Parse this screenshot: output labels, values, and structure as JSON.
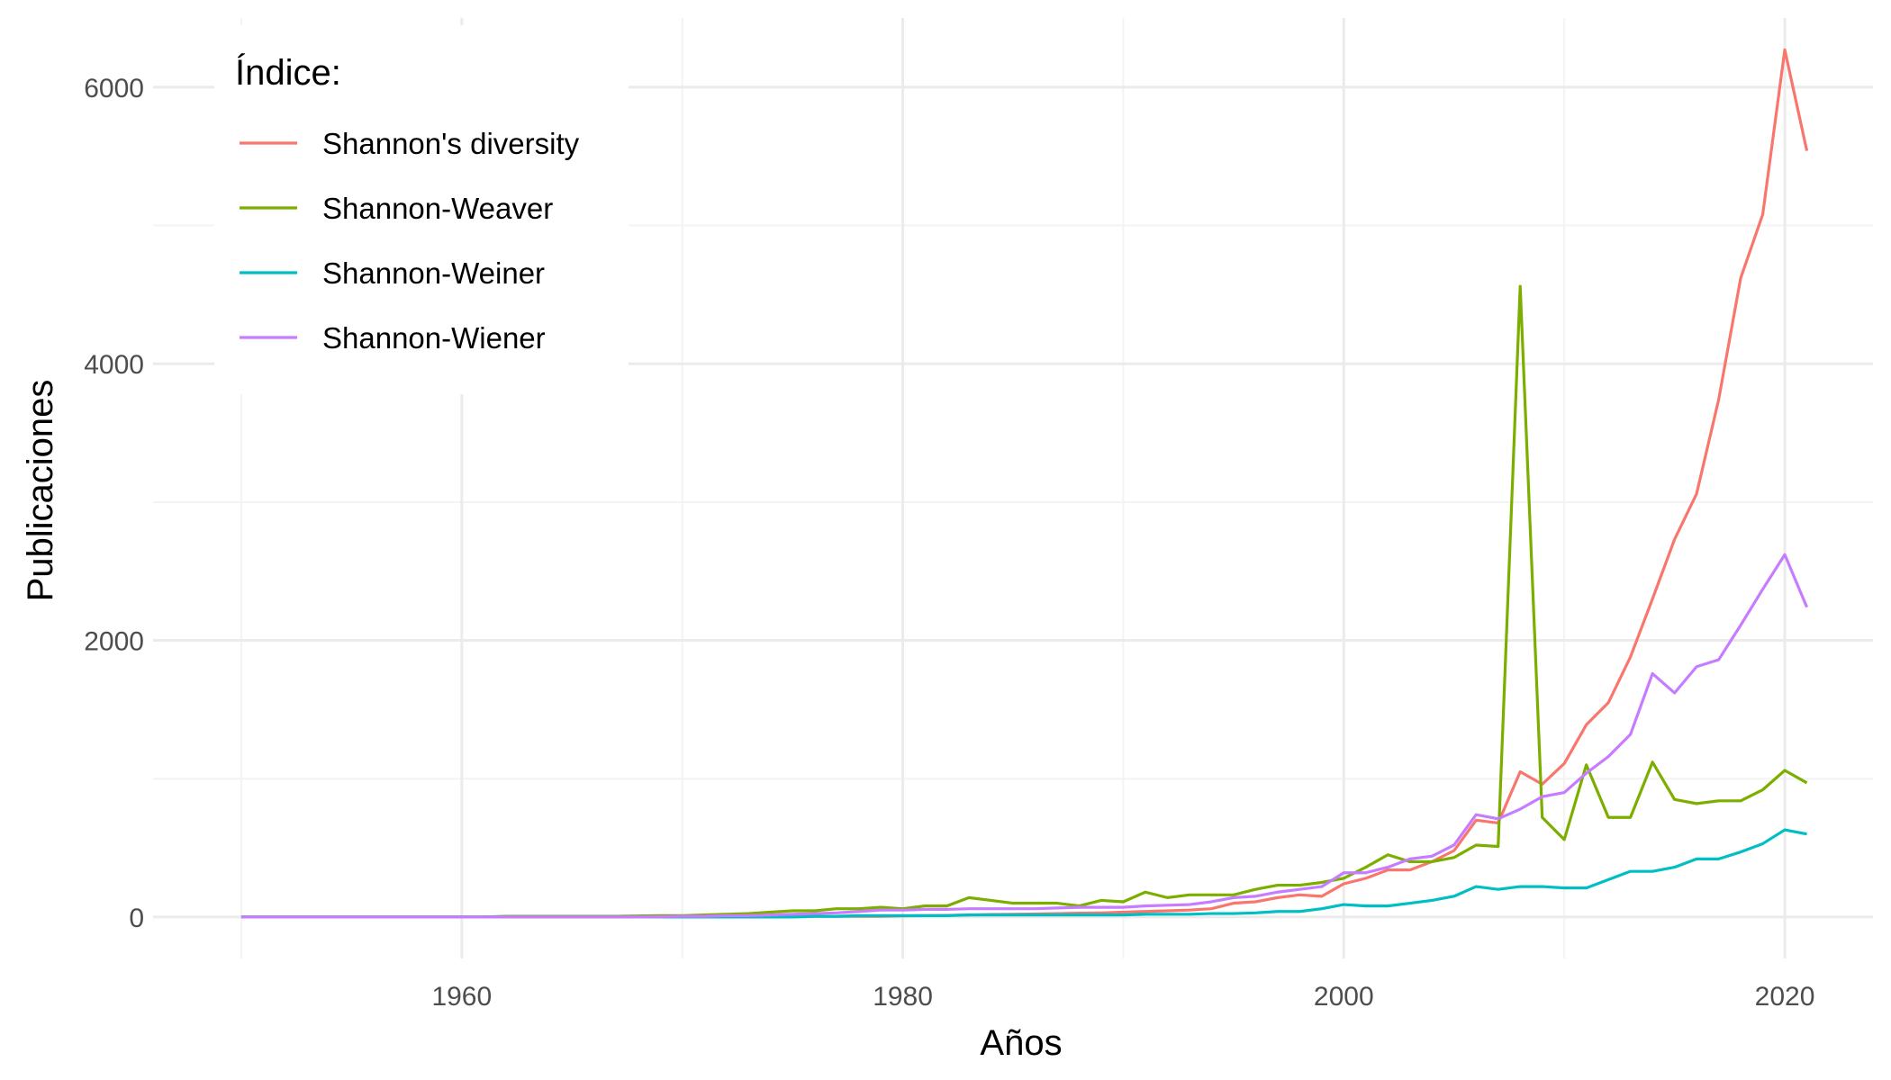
{
  "chart_data": {
    "type": "line",
    "title": "",
    "xlabel": "Años",
    "ylabel": "Publicaciones",
    "xlim": [
      1946,
      2024
    ],
    "ylim": [
      -300,
      6500
    ],
    "x_major_ticks": [
      1960,
      1980,
      2000,
      2020
    ],
    "x_minor_ticks": [
      1950,
      1970,
      1990,
      2010
    ],
    "y_major_ticks": [
      0,
      2000,
      4000,
      6000
    ],
    "y_minor_ticks": [
      1000,
      3000,
      5000
    ],
    "x_tick_labels": [
      "1960",
      "1980",
      "2000",
      "2020"
    ],
    "y_tick_labels": [
      "0",
      "2000",
      "4000",
      "6000"
    ],
    "grid": true,
    "legend": {
      "title": "Índice:",
      "position": "top-left"
    },
    "colors": {
      "grid_major": "#ebebeb",
      "grid_minor": "#f3f3f3",
      "shannons_diversity": "#F8766D",
      "shannon_weaver": "#7CAE00",
      "shannon_weiner": "#00BFC4",
      "shannon_wiener": "#C77CFF"
    },
    "x": [
      1950,
      1951,
      1952,
      1953,
      1954,
      1955,
      1956,
      1957,
      1958,
      1959,
      1960,
      1961,
      1962,
      1963,
      1964,
      1965,
      1966,
      1967,
      1968,
      1969,
      1970,
      1971,
      1972,
      1973,
      1974,
      1975,
      1976,
      1977,
      1978,
      1979,
      1980,
      1981,
      1982,
      1983,
      1984,
      1985,
      1986,
      1987,
      1988,
      1989,
      1990,
      1991,
      1992,
      1993,
      1994,
      1995,
      1996,
      1997,
      1998,
      1999,
      2000,
      2001,
      2002,
      2003,
      2004,
      2005,
      2006,
      2007,
      2008,
      2009,
      2010,
      2011,
      2012,
      2013,
      2014,
      2015,
      2016,
      2017,
      2018,
      2019,
      2020,
      2021
    ],
    "series": [
      {
        "name": "Shannon's diversity",
        "color": "#F8766D",
        "values": [
          0,
          0,
          0,
          0,
          0,
          0,
          0,
          0,
          0,
          0,
          0,
          0,
          0,
          0,
          0,
          0,
          0,
          0,
          0,
          0,
          0,
          0,
          2,
          2,
          3,
          3,
          5,
          5,
          5,
          5,
          8,
          10,
          12,
          15,
          18,
          20,
          22,
          25,
          28,
          30,
          35,
          40,
          45,
          50,
          60,
          100,
          110,
          140,
          160,
          150,
          240,
          280,
          340,
          340,
          400,
          480,
          700,
          680,
          1050,
          960,
          1110,
          1390,
          1550,
          1880,
          2300,
          2730,
          3060,
          3740,
          4620,
          5080,
          6270,
          5540
        ]
      },
      {
        "name": "Shannon-Weaver",
        "color": "#7CAE00",
        "values": [
          0,
          0,
          0,
          0,
          0,
          0,
          0,
          0,
          0,
          0,
          0,
          0,
          5,
          5,
          5,
          5,
          5,
          5,
          8,
          10,
          10,
          15,
          20,
          25,
          35,
          45,
          45,
          60,
          60,
          70,
          60,
          80,
          80,
          140,
          120,
          100,
          100,
          100,
          80,
          120,
          110,
          180,
          140,
          160,
          160,
          160,
          200,
          230,
          230,
          250,
          280,
          360,
          450,
          400,
          400,
          430,
          520,
          510,
          4560,
          720,
          560,
          1100,
          720,
          720,
          1120,
          850,
          820,
          840,
          840,
          920,
          1060,
          970
        ]
      },
      {
        "name": "Shannon-Weiner",
        "color": "#00BFC4",
        "values": [
          0,
          0,
          0,
          0,
          0,
          0,
          0,
          0,
          0,
          0,
          0,
          0,
          0,
          0,
          0,
          0,
          0,
          0,
          0,
          0,
          0,
          0,
          0,
          0,
          0,
          0,
          5,
          5,
          10,
          10,
          10,
          10,
          10,
          15,
          15,
          15,
          15,
          15,
          15,
          15,
          15,
          20,
          20,
          20,
          25,
          25,
          30,
          40,
          40,
          60,
          90,
          80,
          80,
          100,
          120,
          150,
          220,
          200,
          220,
          220,
          210,
          210,
          270,
          330,
          330,
          360,
          420,
          420,
          470,
          530,
          630,
          600
        ]
      },
      {
        "name": "Shannon-Wiener",
        "color": "#C77CFF",
        "values": [
          0,
          0,
          0,
          0,
          0,
          0,
          0,
          0,
          0,
          0,
          0,
          0,
          0,
          0,
          0,
          0,
          0,
          0,
          0,
          2,
          5,
          5,
          10,
          10,
          15,
          20,
          25,
          30,
          40,
          50,
          50,
          55,
          55,
          60,
          60,
          60,
          60,
          65,
          70,
          70,
          70,
          80,
          85,
          90,
          110,
          140,
          150,
          180,
          200,
          220,
          320,
          320,
          360,
          420,
          440,
          520,
          740,
          710,
          780,
          870,
          900,
          1040,
          1160,
          1320,
          1760,
          1620,
          1810,
          1860,
          2110,
          2370,
          2620,
          2240
        ]
      }
    ]
  }
}
